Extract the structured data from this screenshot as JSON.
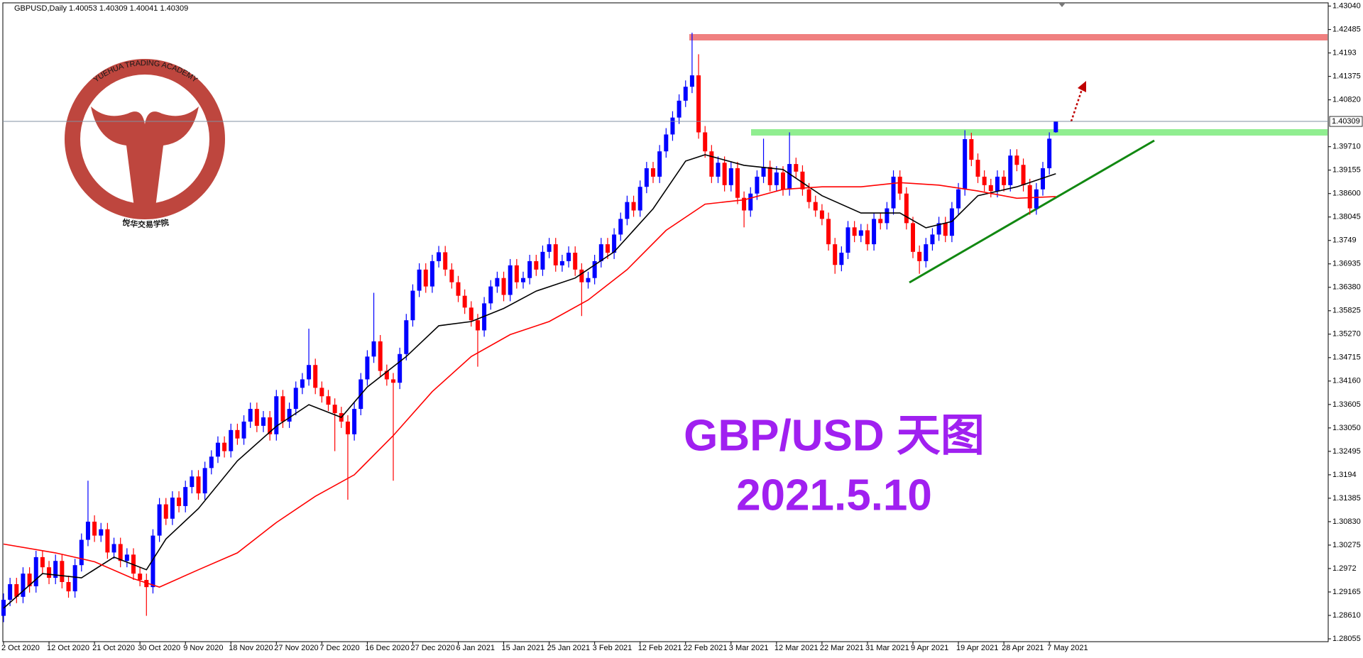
{
  "chart_data": {
    "type": "candlestick",
    "header": "GBPUSD,Daily 1.40053 1.40309 1.40041 1.40309",
    "title": "GBP/USD 天图",
    "subtitle": "2021.5.10",
    "watermark_en": "YUEHUA TRADING ACADEMY",
    "watermark_cn": "悦华交易学院",
    "up_color": "#0000ff",
    "down_color": "#ff0000",
    "grid": false,
    "ylim": [
      1.28055,
      1.4304
    ],
    "yticks": [
      {
        "value": 1.4304,
        "label": "1.43040"
      },
      1.42485,
      1.4193,
      1.41375,
      {
        "value": 1.4082,
        "label": "1.40820"
      },
      {
        "value": 1.3971,
        "label": "1.39710"
      },
      1.39155,
      {
        "value": 1.386,
        "label": "1.38600"
      },
      1.38045,
      1.3749,
      1.36935,
      {
        "value": 1.3638,
        "label": "1.36380"
      },
      1.35825,
      {
        "value": 1.3527,
        "label": "1.35270"
      },
      1.34715,
      {
        "value": 1.3416,
        "label": "1.34160"
      },
      1.33605,
      {
        "value": 1.3305,
        "label": "1.33050"
      },
      1.32495,
      1.3194,
      1.31385,
      {
        "value": 1.3083,
        "label": "1.30830"
      },
      1.30275,
      1.2972,
      1.29165,
      {
        "value": 1.2861,
        "label": "1.28610"
      },
      1.28055
    ],
    "last_price": 1.40309,
    "categories": [
      "2 Oct 2020",
      null,
      null,
      null,
      null,
      null,
      null,
      "12 Oct 2020",
      null,
      null,
      null,
      null,
      null,
      null,
      "21 Oct 2020",
      null,
      null,
      null,
      null,
      null,
      null,
      "30 Oct 2020",
      null,
      null,
      null,
      null,
      null,
      null,
      "9 Nov 2020",
      null,
      null,
      null,
      null,
      null,
      null,
      "18 Nov 2020",
      null,
      null,
      null,
      null,
      null,
      null,
      "27 Nov 2020",
      null,
      null,
      null,
      null,
      null,
      null,
      "7 Dec 2020",
      null,
      null,
      null,
      null,
      null,
      null,
      "16 Dec 2020",
      null,
      null,
      null,
      null,
      null,
      null,
      "27 Dec 2020",
      null,
      null,
      null,
      null,
      null,
      null,
      "6 Jan 2021",
      null,
      null,
      null,
      null,
      null,
      null,
      "15 Jan 2021",
      null,
      null,
      null,
      null,
      null,
      null,
      "25 Jan 2021",
      null,
      null,
      null,
      null,
      null,
      null,
      "3 Feb 2021",
      null,
      null,
      null,
      null,
      null,
      null,
      "12 Feb 2021",
      null,
      null,
      null,
      null,
      null,
      null,
      "22 Feb 2021",
      null,
      null,
      null,
      null,
      null,
      null,
      "3 Mar 2021",
      null,
      null,
      null,
      null,
      null,
      null,
      "12 Mar 2021",
      null,
      null,
      null,
      null,
      null,
      null,
      "22 Mar 2021",
      null,
      null,
      null,
      null,
      null,
      null,
      "31 Mar 2021",
      null,
      null,
      null,
      null,
      null,
      null,
      "9 Apr 2021",
      null,
      null,
      null,
      null,
      null,
      null,
      "19 Apr 2021",
      null,
      null,
      null,
      null,
      null,
      null,
      "28 Apr 2021",
      null,
      null,
      null,
      null,
      null,
      null,
      "7 May 2021",
      null
    ],
    "ohlc": [
      [
        1.286,
        1.2913,
        1.2845,
        1.2898
      ],
      [
        1.2898,
        1.295,
        1.2883,
        1.2935
      ],
      [
        1.2935,
        1.295,
        1.289,
        1.2905
      ],
      [
        1.2905,
        1.2975,
        1.289,
        1.296
      ],
      [
        1.296,
        1.2975,
        1.2915,
        1.293
      ],
      [
        1.293,
        1.3014,
        1.2915,
        1.2999
      ],
      [
        1.2999,
        1.3014,
        1.296,
        1.2975
      ],
      [
        1.2975,
        1.299,
        1.2935,
        1.295
      ],
      [
        1.295,
        1.3005,
        1.2935,
        1.299
      ],
      [
        1.299,
        1.3005,
        1.2925,
        1.294
      ],
      [
        1.294,
        1.2955,
        1.2903,
        1.2918
      ],
      [
        1.2918,
        1.2995,
        1.2903,
        1.298
      ],
      [
        1.298,
        1.3055,
        1.2965,
        1.304
      ],
      [
        1.304,
        1.318,
        1.3025,
        1.3083
      ],
      [
        1.3083,
        1.3098,
        1.3035,
        1.305
      ],
      [
        1.305,
        1.308,
        1.3035,
        1.3065
      ],
      [
        1.3065,
        1.308,
        1.2995,
        1.301
      ],
      [
        1.301,
        1.3045,
        1.2995,
        1.303
      ],
      [
        1.303,
        1.3045,
        1.2975,
        1.299
      ],
      [
        1.299,
        1.302,
        1.2975,
        1.3005
      ],
      [
        1.3005,
        1.302,
        1.2945,
        1.296
      ],
      [
        1.296,
        1.2975,
        1.293,
        1.2945
      ],
      [
        1.2945,
        1.296,
        1.286,
        1.2928
      ],
      [
        1.2928,
        1.3065,
        1.2913,
        1.305
      ],
      [
        1.305,
        1.3139,
        1.3035,
        1.3124
      ],
      [
        1.3124,
        1.3139,
        1.3075,
        1.309
      ],
      [
        1.309,
        1.3155,
        1.3075,
        1.314
      ],
      [
        1.314,
        1.3155,
        1.3105,
        1.312
      ],
      [
        1.312,
        1.318,
        1.3105,
        1.3165
      ],
      [
        1.3165,
        1.3205,
        1.315,
        1.319
      ],
      [
        1.319,
        1.3205,
        1.3135,
        1.315
      ],
      [
        1.315,
        1.3225,
        1.3135,
        1.321
      ],
      [
        1.321,
        1.3252,
        1.3195,
        1.3237
      ],
      [
        1.3237,
        1.3285,
        1.3222,
        1.327
      ],
      [
        1.327,
        1.3285,
        1.3235,
        1.325
      ],
      [
        1.325,
        1.3315,
        1.3235,
        1.33
      ],
      [
        1.33,
        1.3315,
        1.3265,
        1.328
      ],
      [
        1.328,
        1.3335,
        1.3265,
        1.332
      ],
      [
        1.332,
        1.3365,
        1.3305,
        1.335
      ],
      [
        1.335,
        1.3365,
        1.3295,
        1.331
      ],
      [
        1.331,
        1.3345,
        1.3295,
        1.333
      ],
      [
        1.333,
        1.3345,
        1.3275,
        1.329
      ],
      [
        1.329,
        1.3395,
        1.3275,
        1.338
      ],
      [
        1.338,
        1.3395,
        1.3305,
        1.332
      ],
      [
        1.332,
        1.3365,
        1.3305,
        1.335
      ],
      [
        1.335,
        1.3415,
        1.3335,
        1.34
      ],
      [
        1.34,
        1.3435,
        1.3385,
        1.342
      ],
      [
        1.342,
        1.354,
        1.3405,
        1.3454
      ],
      [
        1.3454,
        1.3469,
        1.3385,
        1.34
      ],
      [
        1.34,
        1.3415,
        1.3365,
        1.338
      ],
      [
        1.338,
        1.3395,
        1.3345,
        1.336
      ],
      [
        1.336,
        1.3375,
        1.325,
        1.334
      ],
      [
        1.334,
        1.3355,
        1.3305,
        1.332
      ],
      [
        1.332,
        1.3335,
        1.3135,
        1.329
      ],
      [
        1.329,
        1.3365,
        1.3275,
        1.335
      ],
      [
        1.335,
        1.3435,
        1.3335,
        1.342
      ],
      [
        1.342,
        1.3489,
        1.3405,
        1.3474
      ],
      [
        1.3474,
        1.3625,
        1.3459,
        1.351
      ],
      [
        1.351,
        1.3525,
        1.3425,
        1.344
      ],
      [
        1.344,
        1.3455,
        1.3405,
        1.342
      ],
      [
        1.342,
        1.3435,
        1.318,
        1.3412
      ],
      [
        1.3412,
        1.3495,
        1.3397,
        1.348
      ],
      [
        1.348,
        1.3575,
        1.3465,
        1.356
      ],
      [
        1.356,
        1.3645,
        1.3545,
        1.363
      ],
      [
        1.363,
        1.3695,
        1.3615,
        1.368
      ],
      [
        1.368,
        1.3695,
        1.3625,
        1.364
      ],
      [
        1.364,
        1.3715,
        1.3625,
        1.37
      ],
      [
        1.37,
        1.3736,
        1.3685,
        1.3721
      ],
      [
        1.3721,
        1.3736,
        1.3665,
        1.368
      ],
      [
        1.368,
        1.3695,
        1.3635,
        1.365
      ],
      [
        1.365,
        1.3665,
        1.3603,
        1.3618
      ],
      [
        1.3618,
        1.3633,
        1.3575,
        1.359
      ],
      [
        1.359,
        1.3605,
        1.3545,
        1.356
      ],
      [
        1.356,
        1.3575,
        1.345,
        1.3536
      ],
      [
        1.3536,
        1.3615,
        1.3521,
        1.36
      ],
      [
        1.36,
        1.3655,
        1.3585,
        1.364
      ],
      [
        1.364,
        1.3675,
        1.3625,
        1.366
      ],
      [
        1.366,
        1.3675,
        1.3605,
        1.362
      ],
      [
        1.362,
        1.3705,
        1.3605,
        1.369
      ],
      [
        1.369,
        1.3705,
        1.3635,
        1.365
      ],
      [
        1.365,
        1.3675,
        1.3635,
        1.366
      ],
      [
        1.366,
        1.3715,
        1.3645,
        1.37
      ],
      [
        1.37,
        1.3715,
        1.3665,
        1.368
      ],
      [
        1.368,
        1.3737,
        1.3665,
        1.3722
      ],
      [
        1.3722,
        1.3755,
        1.3707,
        1.374
      ],
      [
        1.374,
        1.3755,
        1.3675,
        1.369
      ],
      [
        1.369,
        1.3715,
        1.3675,
        1.37
      ],
      [
        1.37,
        1.3735,
        1.3685,
        1.372
      ],
      [
        1.372,
        1.3735,
        1.3665,
        1.368
      ],
      [
        1.368,
        1.3695,
        1.357,
        1.365
      ],
      [
        1.365,
        1.3675,
        1.3635,
        1.366
      ],
      [
        1.366,
        1.3715,
        1.3645,
        1.37
      ],
      [
        1.37,
        1.3755,
        1.3685,
        1.374
      ],
      [
        1.374,
        1.3755,
        1.3705,
        1.372
      ],
      [
        1.372,
        1.3778,
        1.3705,
        1.3763
      ],
      [
        1.3763,
        1.3815,
        1.3748,
        1.38
      ],
      [
        1.38,
        1.3855,
        1.3785,
        1.384
      ],
      [
        1.384,
        1.3855,
        1.3805,
        1.382
      ],
      [
        1.382,
        1.3891,
        1.3805,
        1.3876
      ],
      [
        1.3876,
        1.3935,
        1.3861,
        1.392
      ],
      [
        1.392,
        1.3935,
        1.3885,
        1.39
      ],
      [
        1.39,
        1.3975,
        1.3885,
        1.396
      ],
      [
        1.396,
        1.4015,
        1.3945,
        1.4
      ],
      [
        1.4,
        1.4055,
        1.3985,
        1.404
      ],
      [
        1.404,
        1.4095,
        1.4025,
        1.408
      ],
      [
        1.408,
        1.4128,
        1.4065,
        1.4113
      ],
      [
        1.4113,
        1.4241,
        1.4098,
        1.414
      ],
      [
        1.414,
        1.419,
        1.399,
        1.4005
      ],
      [
        1.4005,
        1.402,
        1.3945,
        1.396
      ],
      [
        1.396,
        1.3975,
        1.3885,
        1.39
      ],
      [
        1.39,
        1.3948,
        1.3885,
        1.3933
      ],
      [
        1.3933,
        1.3948,
        1.3865,
        1.388
      ],
      [
        1.388,
        1.3935,
        1.3865,
        1.392
      ],
      [
        1.392,
        1.3935,
        1.3835,
        1.385
      ],
      [
        1.385,
        1.3865,
        1.378,
        1.382
      ],
      [
        1.382,
        1.3875,
        1.3805,
        1.386
      ],
      [
        1.386,
        1.3915,
        1.3845,
        1.39
      ],
      [
        1.39,
        1.399,
        1.3885,
        1.3923
      ],
      [
        1.3923,
        1.3938,
        1.3865,
        1.388
      ],
      [
        1.388,
        1.3925,
        1.3865,
        1.391
      ],
      [
        1.391,
        1.3925,
        1.3855,
        1.387
      ],
      [
        1.387,
        1.4005,
        1.3855,
        1.393
      ],
      [
        1.393,
        1.3945,
        1.3897,
        1.3912
      ],
      [
        1.3912,
        1.3927,
        1.3855,
        1.387
      ],
      [
        1.387,
        1.3885,
        1.3825,
        1.384
      ],
      [
        1.384,
        1.3855,
        1.3805,
        1.382
      ],
      [
        1.382,
        1.3835,
        1.3785,
        1.38
      ],
      [
        1.38,
        1.3815,
        1.3725,
        1.374
      ],
      [
        1.374,
        1.3755,
        1.367,
        1.3691
      ],
      [
        1.3691,
        1.3735,
        1.3676,
        1.372
      ],
      [
        1.372,
        1.3795,
        1.3705,
        1.378
      ],
      [
        1.378,
        1.3795,
        1.3745,
        1.376
      ],
      [
        1.376,
        1.3788,
        1.3745,
        1.3773
      ],
      [
        1.3773,
        1.3788,
        1.3725,
        1.374
      ],
      [
        1.374,
        1.3815,
        1.3725,
        1.38
      ],
      [
        1.38,
        1.3815,
        1.3775,
        1.379
      ],
      [
        1.379,
        1.384,
        1.3775,
        1.3825
      ],
      [
        1.3825,
        1.3915,
        1.381,
        1.39
      ],
      [
        1.39,
        1.3915,
        1.3845,
        1.386
      ],
      [
        1.386,
        1.3875,
        1.3775,
        1.379
      ],
      [
        1.379,
        1.3805,
        1.3707,
        1.3722
      ],
      [
        1.3722,
        1.3737,
        1.367,
        1.37
      ],
      [
        1.37,
        1.3755,
        1.3685,
        1.374
      ],
      [
        1.374,
        1.3778,
        1.3725,
        1.3763
      ],
      [
        1.3763,
        1.3805,
        1.3748,
        1.379
      ],
      [
        1.379,
        1.3805,
        1.3745,
        1.376
      ],
      [
        1.376,
        1.384,
        1.3745,
        1.3825
      ],
      [
        1.3825,
        1.3885,
        1.381,
        1.387
      ],
      [
        1.387,
        1.401,
        1.3855,
        1.3989
      ],
      [
        1.3989,
        1.4004,
        1.3925,
        1.394
      ],
      [
        1.394,
        1.3955,
        1.3885,
        1.39
      ],
      [
        1.39,
        1.3915,
        1.3865,
        1.388
      ],
      [
        1.388,
        1.3895,
        1.3851,
        1.3866
      ],
      [
        1.3866,
        1.3915,
        1.3851,
        1.39
      ],
      [
        1.39,
        1.3915,
        1.3865,
        1.388
      ],
      [
        1.388,
        1.3965,
        1.3865,
        1.395
      ],
      [
        1.395,
        1.3965,
        1.3913,
        1.3928
      ],
      [
        1.3928,
        1.3943,
        1.3865,
        1.388
      ],
      [
        1.388,
        1.3895,
        1.381,
        1.3825
      ],
      [
        1.3825,
        1.3885,
        1.381,
        1.387
      ],
      [
        1.387,
        1.3935,
        1.3855,
        1.392
      ],
      [
        1.392,
        1.4005,
        1.3905,
        1.399
      ],
      [
        1.40053,
        1.40309,
        1.40041,
        1.40309
      ]
    ],
    "lines": [
      {
        "color": "#000000",
        "x": [
          0,
          6,
          12,
          17,
          22,
          25,
          30,
          36,
          42,
          47,
          52,
          56,
          62,
          67,
          72,
          77,
          82,
          88,
          94,
          100,
          105,
          108,
          114,
          120,
          126,
          132,
          138,
          142,
          146,
          150,
          156,
          162
        ],
        "values": [
          1.2878,
          1.296,
          1.295,
          1.2999,
          1.2969,
          1.3042,
          1.3114,
          1.3227,
          1.3309,
          1.336,
          1.333,
          1.3402,
          1.3474,
          1.3547,
          1.3557,
          1.3588,
          1.3629,
          1.366,
          1.3722,
          1.3824,
          1.3937,
          1.3952,
          1.3927,
          1.3917,
          1.3855,
          1.3814,
          1.3814,
          1.3779,
          1.3794,
          1.3855,
          1.3876,
          1.3907
        ]
      },
      {
        "color": "#ff0000",
        "x": [
          0,
          8,
          14,
          20,
          24,
          30,
          36,
          42,
          48,
          54,
          60,
          66,
          72,
          78,
          84,
          90,
          96,
          102,
          108,
          114,
          120,
          126,
          132,
          138,
          144,
          150,
          156,
          162
        ],
        "values": [
          1.303,
          1.3009,
          1.2988,
          1.2948,
          1.2928,
          1.2969,
          1.3009,
          1.3081,
          1.3143,
          1.3194,
          1.3287,
          1.3391,
          1.3474,
          1.3526,
          1.3557,
          1.3608,
          1.368,
          1.3773,
          1.3835,
          1.3845,
          1.387,
          1.3876,
          1.3876,
          1.3886,
          1.388,
          1.3866,
          1.3849,
          1.3853
        ]
      }
    ]
  }
}
